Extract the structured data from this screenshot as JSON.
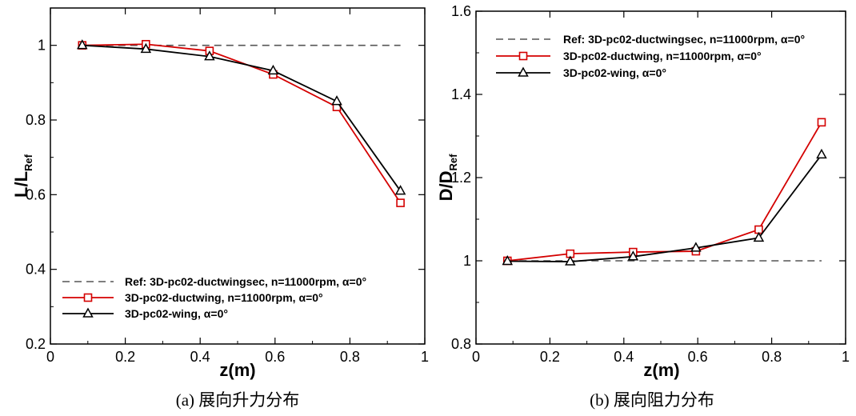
{
  "chart_data": [
    {
      "type": "line",
      "panel_id": "a",
      "caption": "(a)  展向升力分布",
      "xlabel": "z(m)",
      "ylabel_main": "L/L",
      "ylabel_sub": "Ref",
      "xlim": [
        0,
        1
      ],
      "ylim": [
        0.2,
        1.1
      ],
      "xticks": [
        0,
        0.2,
        0.4,
        0.6,
        0.8,
        1
      ],
      "xtick_labels": [
        "0",
        "0.2",
        "0.4",
        "0.6",
        "0.8",
        "1"
      ],
      "yticks": [
        0.2,
        0.4,
        0.6,
        0.8,
        1
      ],
      "ytick_labels": [
        "0.2",
        "0.4",
        "0.6",
        "0.8",
        "1"
      ],
      "legend_position": "bottom-left",
      "series": [
        {
          "name": "Ref: 3D-pc02-ductwingsec, n=11000rpm, α=0°",
          "color": "#555555",
          "style": "dashed",
          "marker": "none",
          "x": [
            0.085,
            0.935
          ],
          "y": [
            1.0,
            1.0
          ]
        },
        {
          "name": "3D-pc02-ductwing, n=11000rpm, α=0°",
          "color": "#d40000",
          "style": "solid",
          "marker": "square",
          "x": [
            0.085,
            0.255,
            0.425,
            0.595,
            0.765,
            0.935
          ],
          "y": [
            1.0,
            1.003,
            0.985,
            0.922,
            0.835,
            0.578
          ]
        },
        {
          "name": "3D-pc02-wing, α=0°",
          "color": "#000000",
          "style": "solid",
          "marker": "triangle",
          "x": [
            0.085,
            0.255,
            0.425,
            0.595,
            0.765,
            0.935
          ],
          "y": [
            1.0,
            0.99,
            0.97,
            0.932,
            0.85,
            0.61
          ]
        }
      ]
    },
    {
      "type": "line",
      "panel_id": "b",
      "caption": "(b)  展向阻力分布",
      "xlabel": "z(m)",
      "ylabel_main": "D/D",
      "ylabel_sub": "Ref",
      "xlim": [
        0,
        1
      ],
      "ylim": [
        0.8,
        1.6
      ],
      "xticks": [
        0,
        0.2,
        0.4,
        0.6,
        0.8,
        1
      ],
      "xtick_labels": [
        "0",
        "0.2",
        "0.4",
        "0.6",
        "0.8",
        "1"
      ],
      "yticks": [
        0.8,
        1,
        1.2,
        1.4,
        1.6
      ],
      "ytick_labels": [
        "0.8",
        "1",
        "1.2",
        "1.4",
        "1.6"
      ],
      "legend_position": "top-left",
      "series": [
        {
          "name": "Ref: 3D-pc02-ductwingsec, n=11000rpm, α=0°",
          "color": "#555555",
          "style": "dashed",
          "marker": "none",
          "x": [
            0.085,
            0.935
          ],
          "y": [
            1.0,
            1.0
          ]
        },
        {
          "name": "3D-pc02-ductwing, n=11000rpm, α=0°",
          "color": "#d40000",
          "style": "solid",
          "marker": "square",
          "x": [
            0.085,
            0.255,
            0.425,
            0.595,
            0.765,
            0.935
          ],
          "y": [
            1.0,
            1.017,
            1.021,
            1.023,
            1.075,
            1.333
          ]
        },
        {
          "name": "3D-pc02-wing, α=0°",
          "color": "#000000",
          "style": "solid",
          "marker": "triangle",
          "x": [
            0.085,
            0.255,
            0.425,
            0.595,
            0.765,
            0.935
          ],
          "y": [
            0.999,
            0.998,
            1.01,
            1.031,
            1.055,
            1.255
          ]
        }
      ]
    }
  ]
}
